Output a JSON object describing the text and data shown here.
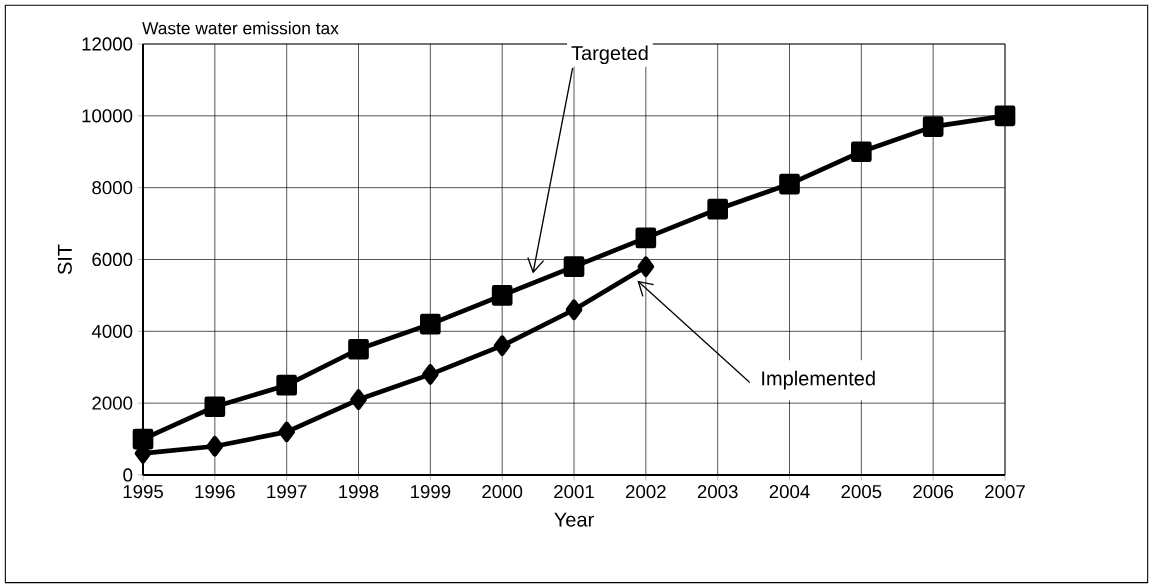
{
  "chart_data": {
    "type": "line",
    "title": "Waste water emission tax",
    "xlabel": "Year",
    "ylabel": "SIT",
    "x": [
      1995,
      1996,
      1997,
      1998,
      1999,
      2000,
      2001,
      2002,
      2003,
      2004,
      2005,
      2006,
      2007
    ],
    "series": [
      {
        "name": "Targeted",
        "color": "#000000",
        "marker": "square",
        "values": [
          1000,
          1900,
          2500,
          3500,
          4200,
          5000,
          5800,
          6600,
          7400,
          8100,
          9000,
          9700,
          10000
        ]
      },
      {
        "name": "Implemented",
        "color": "#000000",
        "marker": "diamond",
        "values": [
          600,
          800,
          1200,
          2100,
          2800,
          3600,
          4600,
          5800,
          null,
          null,
          null,
          null,
          null
        ]
      }
    ],
    "xlim": [
      1995,
      2007
    ],
    "xticks": [
      1995,
      1996,
      1997,
      1998,
      1999,
      2000,
      2001,
      2002,
      2003,
      2004,
      2005,
      2006,
      2007
    ],
    "ylim": [
      0,
      12000
    ],
    "yticks": [
      0,
      2000,
      4000,
      6000,
      8000,
      10000,
      12000
    ],
    "grid": true,
    "legend": false,
    "line_style": "solid"
  }
}
